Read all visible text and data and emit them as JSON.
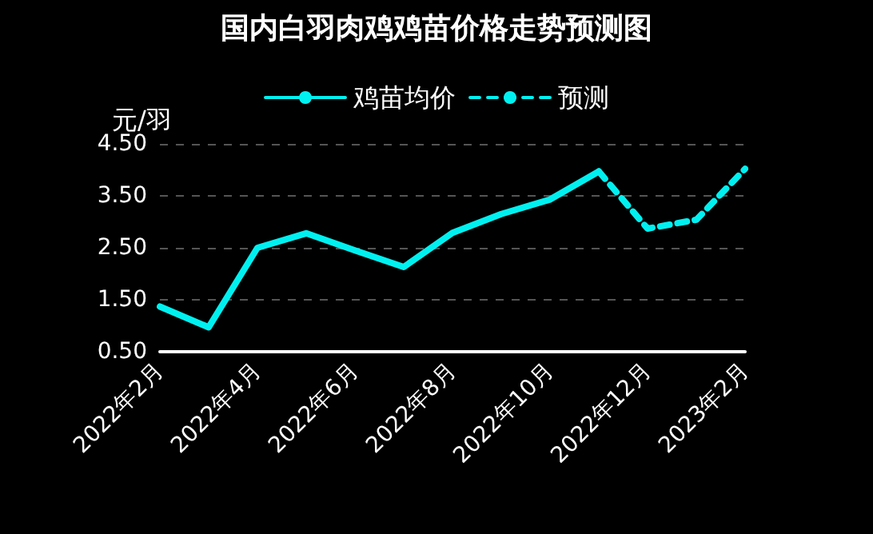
{
  "chart_data": {
    "type": "line",
    "title": "国内白羽肉鸡鸡苗价格走势预测图",
    "ylabel": "元/羽",
    "categories": [
      "2022年2月",
      null,
      "2022年4月",
      null,
      "2022年6月",
      null,
      "2022年8月",
      null,
      "2022年10月",
      null,
      "2022年12月",
      null,
      "2023年2月"
    ],
    "series": [
      {
        "name": "鸡苗均价",
        "color": "#00f0f0",
        "line_style": "solid",
        "values": [
          1.37,
          0.97,
          2.5,
          2.78,
          2.45,
          2.13,
          2.79,
          3.15,
          3.43,
          3.97,
          null,
          null,
          null
        ]
      },
      {
        "name": "预测",
        "color": "#00f0f0",
        "line_style": "dashed",
        "values": [
          null,
          null,
          null,
          null,
          null,
          null,
          null,
          null,
          null,
          3.97,
          2.87,
          3.04,
          4.02
        ]
      }
    ],
    "ylim": [
      0.5,
      4.5
    ],
    "yticks": [
      {
        "value": 0.5,
        "label": "0.50"
      },
      {
        "value": 1.5,
        "label": "1.50"
      },
      {
        "value": 2.5,
        "label": "2.50"
      },
      {
        "value": 3.5,
        "label": "3.50"
      },
      {
        "value": 4.5,
        "label": "4.50"
      }
    ],
    "grid": "y",
    "legend": "top",
    "marker": "none"
  }
}
